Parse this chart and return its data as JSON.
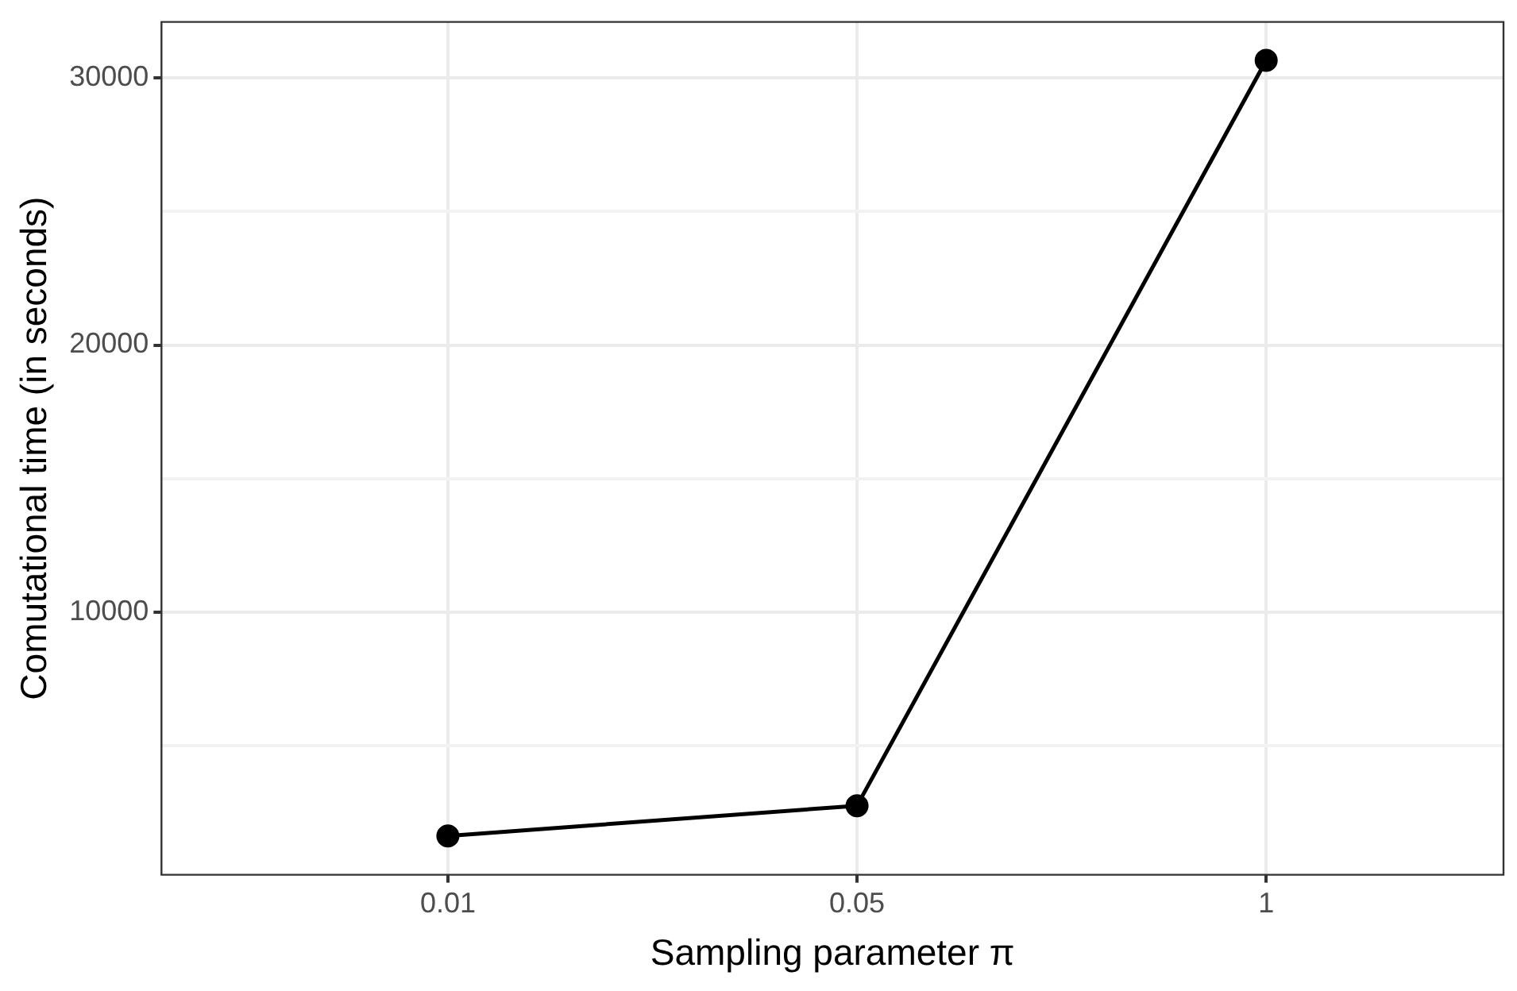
{
  "chart_data": {
    "type": "line",
    "xlabel": "Sampling parameter π",
    "ylabel": "Comutational time (in seconds)",
    "categories": [
      "0.01",
      "0.05",
      "1"
    ],
    "series": [
      {
        "color": "#000000",
        "values": [
          1620,
          2750,
          30660
        ]
      }
    ],
    "ylim": [
      165,
      32100
    ],
    "yticks": [
      {
        "value": 5000,
        "label": null
      },
      10000,
      {
        "value": 15000,
        "label": null
      },
      20000,
      {
        "value": 25000,
        "label": null
      },
      30000
    ],
    "grid": true,
    "legend": false,
    "marker": "circle",
    "line_style": "solid"
  }
}
